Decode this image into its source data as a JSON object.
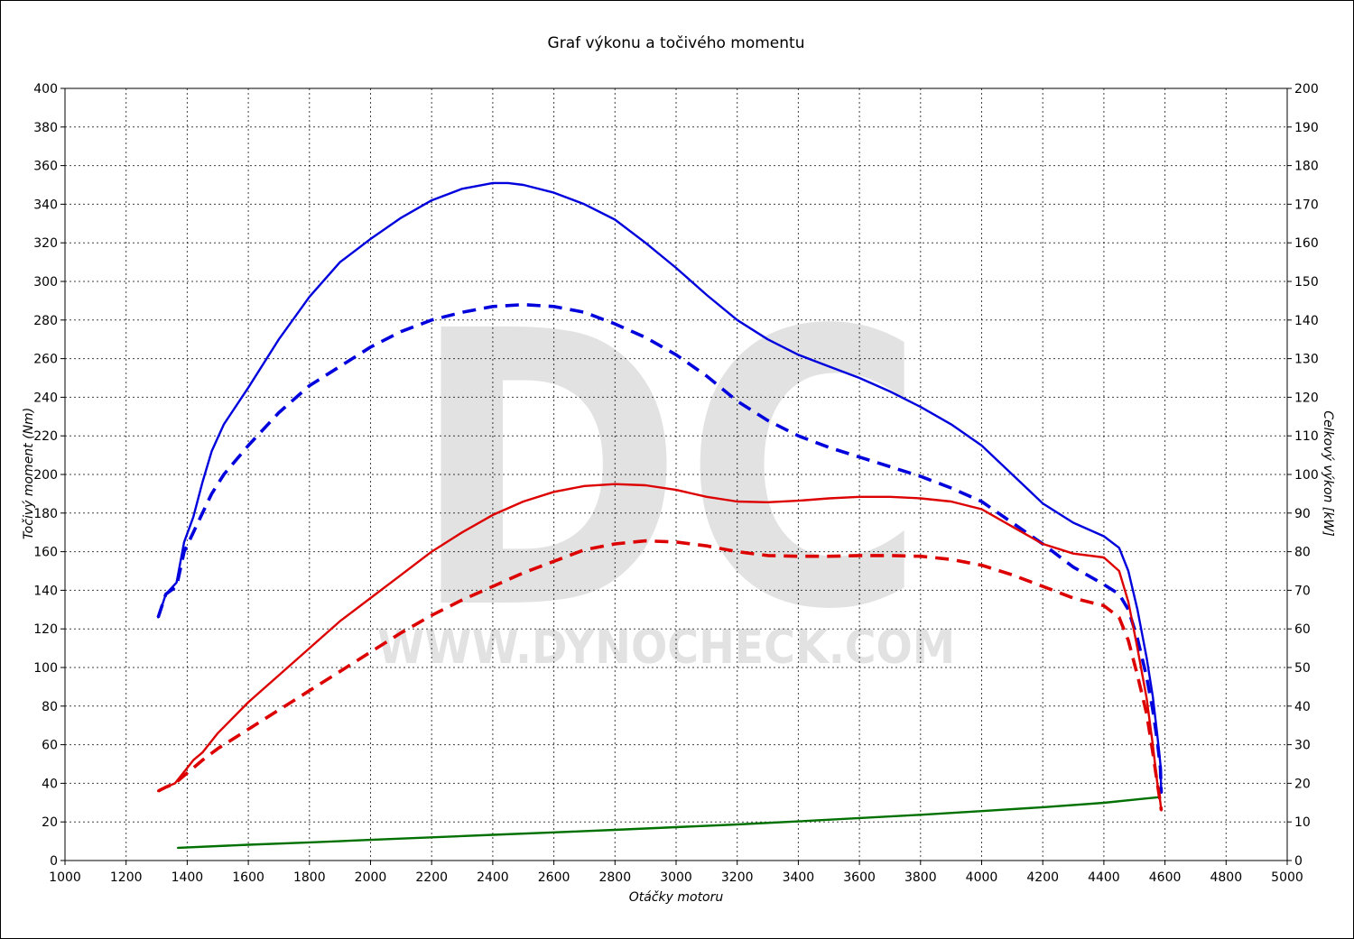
{
  "chart_data": {
    "type": "line",
    "title": "Graf výkonu a točivého momentu",
    "xlabel": "Otáčky motoru",
    "ylabel_left": "Točivý moment (Nm)",
    "ylabel_right": "Celkový výkon [kW]",
    "xlim": [
      1000,
      5000
    ],
    "ylim_left": [
      0,
      400
    ],
    "ylim_right": [
      0,
      200
    ],
    "x_ticks": [
      1000,
      1200,
      1400,
      1600,
      1800,
      2000,
      2200,
      2400,
      2600,
      2800,
      3000,
      3200,
      3400,
      3600,
      3800,
      4000,
      4200,
      4400,
      4600,
      4800,
      5000
    ],
    "y_left_ticks": [
      0,
      20,
      40,
      60,
      80,
      100,
      120,
      140,
      160,
      180,
      200,
      220,
      240,
      260,
      280,
      300,
      320,
      340,
      360,
      380,
      400
    ],
    "y_right_ticks": [
      0,
      10,
      20,
      30,
      40,
      50,
      60,
      70,
      80,
      90,
      100,
      110,
      120,
      130,
      140,
      150,
      160,
      170,
      180,
      190,
      200
    ],
    "grid": true,
    "watermark": {
      "logo": "DC",
      "url": "WWW.DYNOCHECK.COM"
    },
    "series": [
      {
        "axis": "left",
        "color": "#0000dd",
        "style": "solid",
        "x": [
          1305,
          1330,
          1365,
          1390,
          1420,
          1450,
          1480,
          1520,
          1600,
          1700,
          1800,
          1900,
          2000,
          2100,
          2200,
          2300,
          2400,
          2450,
          2500,
          2600,
          2700,
          2800,
          2900,
          3000,
          3100,
          3200,
          3300,
          3400,
          3500,
          3600,
          3700,
          3800,
          3900,
          4000,
          4100,
          4200,
          4300,
          4400,
          4450,
          4480,
          4510,
          4540,
          4560,
          4575,
          4585,
          4588
        ],
        "y": [
          126,
          138,
          144,
          165,
          178,
          196,
          212,
          226,
          245,
          270,
          292,
          310,
          322,
          333,
          342,
          348,
          351,
          351,
          350,
          346,
          340,
          332,
          320,
          307,
          293,
          280,
          270,
          262,
          256,
          250,
          243,
          235,
          226,
          215,
          200,
          185,
          175,
          168,
          162,
          150,
          130,
          105,
          85,
          65,
          50,
          35
        ]
      },
      {
        "axis": "left",
        "color": "#0000dd",
        "style": "dashed",
        "x": [
          1305,
          1330,
          1365,
          1390,
          1420,
          1450,
          1480,
          1520,
          1600,
          1700,
          1800,
          1900,
          2000,
          2100,
          2200,
          2300,
          2400,
          2500,
          2600,
          2700,
          2800,
          2900,
          3000,
          3100,
          3200,
          3300,
          3400,
          3500,
          3600,
          3700,
          3800,
          3900,
          4000,
          4100,
          4200,
          4300,
          4400,
          4450,
          4480,
          4510,
          4540,
          4560,
          4575,
          4585,
          4588
        ],
        "y": [
          126,
          138,
          142,
          160,
          170,
          180,
          190,
          200,
          215,
          232,
          246,
          256,
          266,
          274,
          280,
          284,
          287,
          288,
          287,
          284,
          278,
          271,
          262,
          251,
          238,
          228,
          220,
          214,
          209,
          204,
          199,
          193,
          186,
          175,
          164,
          152,
          143,
          138,
          130,
          115,
          95,
          78,
          62,
          48,
          35
        ]
      },
      {
        "axis": "right",
        "color": "#dd0000",
        "style": "solid",
        "x": [
          1305,
          1330,
          1360,
          1390,
          1420,
          1450,
          1500,
          1600,
          1700,
          1800,
          1900,
          2000,
          2100,
          2200,
          2300,
          2400,
          2500,
          2600,
          2700,
          2800,
          2900,
          3000,
          3100,
          3200,
          3300,
          3400,
          3500,
          3600,
          3700,
          3800,
          3900,
          4000,
          4100,
          4200,
          4300,
          4400,
          4450,
          4480,
          4510,
          4540,
          4560,
          4575,
          4585,
          4588
        ],
        "y": [
          18,
          19,
          20,
          23,
          26,
          28,
          33,
          41,
          48,
          55,
          62,
          68,
          74,
          80,
          85,
          89.5,
          93,
          95.5,
          97,
          97.5,
          97.2,
          96,
          94.2,
          93,
          92.8,
          93.2,
          93.8,
          94.2,
          94.2,
          93.8,
          93,
          91,
          86.5,
          82,
          79.5,
          78.5,
          75,
          67,
          55,
          42,
          30,
          20,
          15,
          13
        ]
      },
      {
        "axis": "right",
        "color": "#dd0000",
        "style": "dashed",
        "x": [
          1305,
          1330,
          1360,
          1390,
          1420,
          1450,
          1500,
          1600,
          1700,
          1800,
          1900,
          2000,
          2100,
          2200,
          2300,
          2400,
          2500,
          2600,
          2700,
          2800,
          2900,
          3000,
          3100,
          3200,
          3300,
          3400,
          3500,
          3600,
          3700,
          3800,
          3900,
          4000,
          4100,
          4200,
          4300,
          4400,
          4450,
          4480,
          4510,
          4540,
          4560,
          4575,
          4585,
          4588
        ],
        "y": [
          18,
          19,
          20,
          22,
          24,
          26,
          29,
          34,
          39,
          44,
          49,
          54,
          59,
          63.5,
          67.5,
          71,
          74.5,
          77.5,
          80.5,
          82,
          82.8,
          82.5,
          81.5,
          80,
          79,
          78.8,
          78.8,
          79,
          79,
          78.8,
          78,
          76.5,
          74,
          71,
          68,
          66,
          63,
          57,
          48,
          38,
          28,
          20,
          15,
          13
        ]
      },
      {
        "axis": "left",
        "color": "#007000",
        "style": "solid",
        "x": [
          1370,
          1600,
          1800,
          2000,
          2200,
          2400,
          2600,
          2800,
          3000,
          3200,
          3400,
          3600,
          3800,
          4000,
          4200,
          4400,
          4580
        ],
        "y": [
          6.6,
          8.2,
          9.4,
          10.7,
          12,
          13.3,
          14.6,
          15.9,
          17.3,
          18.7,
          20.3,
          22,
          23.7,
          25.6,
          27.6,
          29.9,
          32.8
        ]
      }
    ]
  }
}
